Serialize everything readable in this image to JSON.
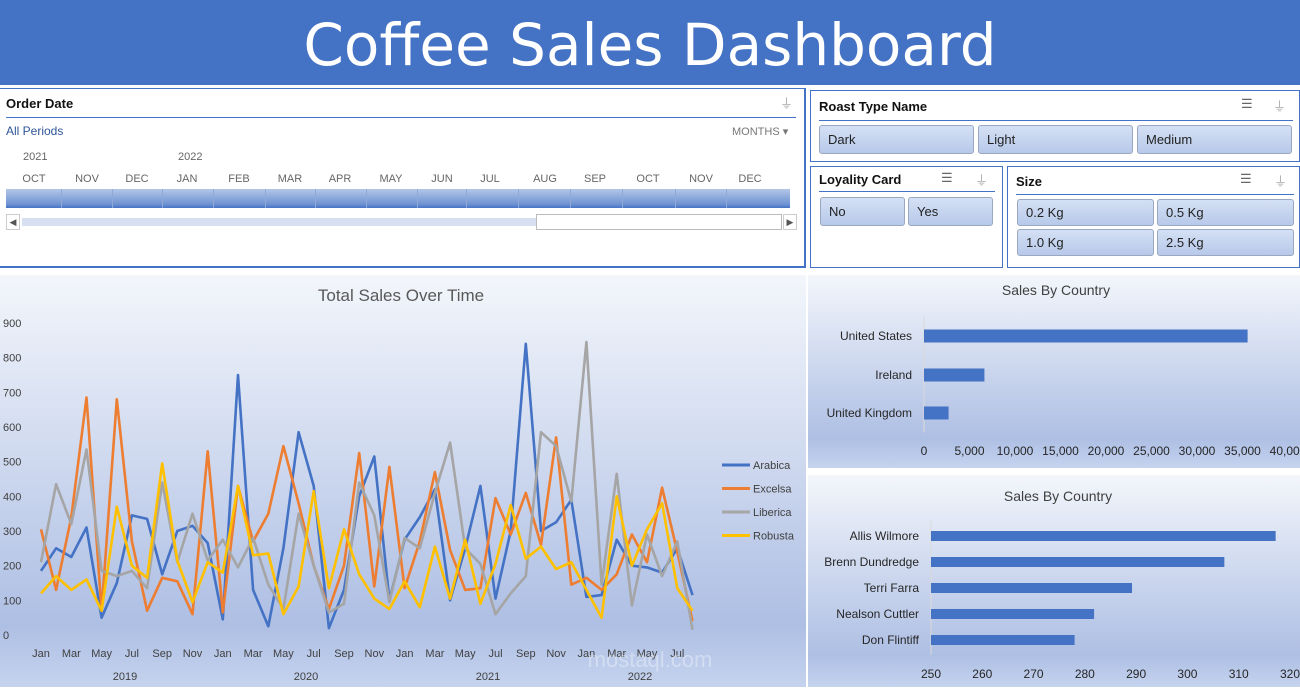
{
  "header": {
    "title": "Coffee Sales Dashboard"
  },
  "order_date": {
    "title": "Order Date",
    "all_periods": "All Periods",
    "level": "MONTHS",
    "years": [
      "2021",
      "2022"
    ],
    "months": [
      "OCT",
      "NOV",
      "DEC",
      "JAN",
      "FEB",
      "MAR",
      "APR",
      "MAY",
      "JUN",
      "JUL",
      "AUG",
      "SEP",
      "OCT",
      "NOV",
      "DEC"
    ]
  },
  "roast": {
    "title": "Roast Type Name",
    "items": [
      "Dark",
      "Light",
      "Medium"
    ]
  },
  "loyalty": {
    "title": "Loyality Card",
    "items": [
      "No",
      "Yes"
    ]
  },
  "size": {
    "title": "Size",
    "items": [
      "0.2 Kg",
      "0.5 Kg",
      "1.0 Kg",
      "2.5 Kg"
    ]
  },
  "colors": {
    "accent": "#4472c4",
    "Arabica": "#4472c4",
    "Excelsa": "#ed7d31",
    "Liberica": "#a5a5a5",
    "Robusta": "#ffc000"
  },
  "watermark": "mostaql.com",
  "chart_data": [
    {
      "type": "line",
      "title": "Total Sales Over Time",
      "ylim": [
        0,
        900
      ],
      "yticks": [
        0,
        100,
        200,
        300,
        400,
        500,
        600,
        700,
        800,
        900
      ],
      "x_tick_labels": [
        "Jan",
        "Mar",
        "May",
        "Jul",
        "Sep",
        "Nov",
        "Jan",
        "Mar",
        "May",
        "Jul",
        "Sep",
        "Nov",
        "Jan",
        "Mar",
        "May",
        "Jul",
        "Sep",
        "Nov",
        "Jan",
        "Mar",
        "May",
        "Jul"
      ],
      "x_year_labels": [
        "2019",
        "2020",
        "2021",
        "2022"
      ],
      "x_range": [
        "2019-01",
        "2022-08"
      ],
      "legend": "right",
      "series": [
        {
          "name": "Arabica",
          "values": [
            185,
            250,
            225,
            310,
            50,
            150,
            345,
            335,
            175,
            300,
            315,
            265,
            45,
            750,
            130,
            25,
            250,
            585,
            430,
            20,
            130,
            400,
            515,
            100,
            275,
            340,
            420,
            100,
            250,
            430,
            105,
            300,
            840,
            300,
            325,
            390,
            110,
            115,
            275,
            200,
            195,
            180,
            250,
            115
          ]
        },
        {
          "name": "Excelsa",
          "values": [
            305,
            130,
            340,
            685,
            70,
            680,
            270,
            70,
            165,
            155,
            60,
            530,
            65,
            430,
            270,
            350,
            545,
            380,
            200,
            75,
            200,
            525,
            140,
            485,
            135,
            270,
            470,
            245,
            130,
            135,
            395,
            290,
            410,
            260,
            570,
            145,
            165,
            130,
            175,
            290,
            210,
            425,
            240,
            40
          ]
        },
        {
          "name": "Liberica",
          "values": [
            210,
            435,
            320,
            535,
            185,
            170,
            185,
            135,
            440,
            210,
            350,
            215,
            275,
            195,
            280,
            145,
            75,
            350,
            200,
            65,
            90,
            440,
            345,
            95,
            280,
            250,
            410,
            555,
            250,
            205,
            60,
            120,
            170,
            585,
            545,
            385,
            845,
            145,
            465,
            85,
            290,
            170,
            270,
            15
          ]
        },
        {
          "name": "Robusta",
          "values": [
            120,
            170,
            130,
            160,
            70,
            370,
            200,
            165,
            495,
            215,
            95,
            210,
            180,
            430,
            230,
            235,
            60,
            140,
            415,
            135,
            305,
            175,
            105,
            75,
            155,
            80,
            255,
            105,
            275,
            90,
            205,
            375,
            220,
            255,
            190,
            210,
            130,
            50,
            400,
            200,
            305,
            380,
            135,
            70
          ]
        }
      ]
    },
    {
      "type": "bar",
      "orientation": "horizontal",
      "title": "Sales By Country",
      "categories": [
        "United States",
        "Ireland",
        "United Kingdom"
      ],
      "values": [
        35560,
        6640,
        2700
      ],
      "xlim": [
        0,
        40000
      ],
      "xticks": [
        "0",
        "5,000",
        "10,000",
        "15,000",
        "20,000",
        "25,000",
        "30,000",
        "35,000",
        "40,000"
      ]
    },
    {
      "type": "bar",
      "orientation": "horizontal",
      "title": "Sales By Country",
      "categories": [
        "Allis Wilmore",
        "Brenn Dundredge",
        "Terri Farra",
        "Nealson Cuttler",
        "Don Flintiff"
      ],
      "values": [
        317.2,
        307.2,
        289.2,
        281.8,
        278
      ],
      "xlim": [
        250,
        320
      ],
      "xticks": [
        "250",
        "260",
        "270",
        "280",
        "290",
        "300",
        "310",
        "320"
      ]
    }
  ]
}
